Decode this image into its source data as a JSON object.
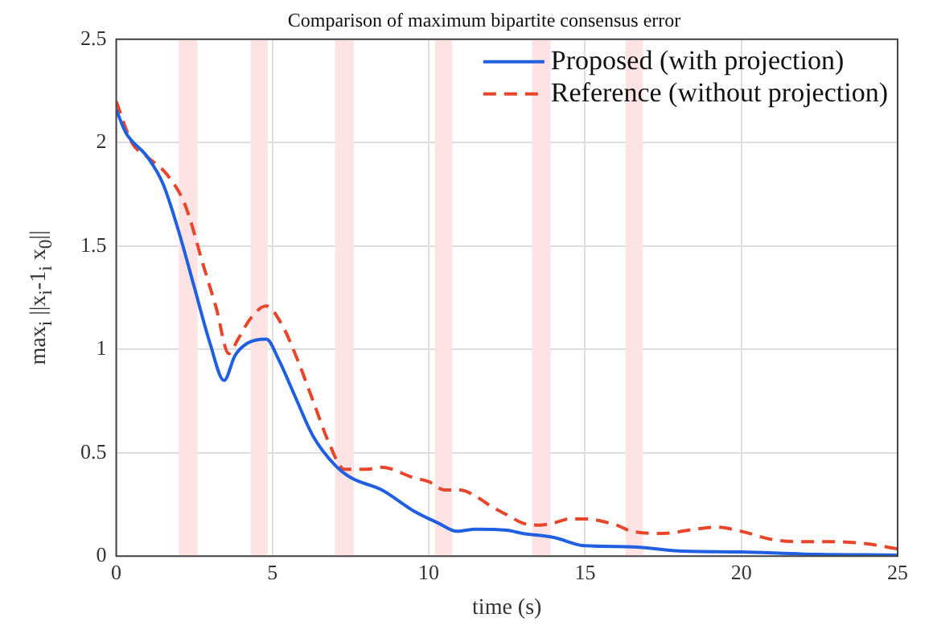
{
  "chart_data": {
    "type": "line",
    "title": "Comparison of maximum bipartite consensus error",
    "xlabel": "time (s)",
    "ylabel": "max$_{i}$ ||x$_{i}$-1$_{i}$ x$_{0}$||",
    "xlim": [
      0,
      25
    ],
    "xticks": [
      0,
      5,
      10,
      15,
      20,
      25
    ],
    "ylim": [
      0,
      2.5
    ],
    "yticks": [
      0,
      0.5,
      1,
      1.5,
      2,
      2.5
    ],
    "grid": true,
    "legend": "top right",
    "series": [
      {
        "name": "Proposed (with projection)",
        "color": "#1f5fe0",
        "line_style": "solid",
        "x": [
          0,
          0.3,
          1,
          1.5,
          2,
          2.5,
          3,
          3.45,
          3.8,
          4.2,
          4.8,
          5.2,
          5.7,
          6.3,
          7,
          7.5,
          8.5,
          9.5,
          10.3,
          10.9,
          11.5,
          12.5,
          13,
          14,
          15,
          16.5,
          18,
          20,
          22,
          25
        ],
        "values": [
          2.16,
          2.05,
          1.93,
          1.8,
          1.57,
          1.3,
          1.03,
          0.85,
          0.97,
          1.03,
          1.05,
          0.95,
          0.78,
          0.58,
          0.44,
          0.38,
          0.32,
          0.22,
          0.16,
          0.12,
          0.13,
          0.125,
          0.11,
          0.09,
          0.05,
          0.045,
          0.025,
          0.02,
          0.01,
          0.005
        ]
      },
      {
        "name": "Reference (without projection)",
        "color": "#e8452a",
        "line_style": "dashed",
        "x": [
          0,
          0.5,
          1,
          1.6,
          2.2,
          2.8,
          3.2,
          3.6,
          3.9,
          4.3,
          4.8,
          5.3,
          5.8,
          6.3,
          6.8,
          7.3,
          8,
          8.5,
          9.5,
          10,
          10.5,
          11,
          11.5,
          12,
          12.5,
          13,
          13.5,
          14,
          14.5,
          15,
          16,
          16.5,
          17.5,
          18.5,
          19.2,
          20,
          21,
          22,
          23,
          24,
          25
        ],
        "values": [
          2.2,
          2.0,
          1.93,
          1.85,
          1.7,
          1.4,
          1.2,
          0.98,
          1.05,
          1.15,
          1.21,
          1.12,
          0.95,
          0.75,
          0.55,
          0.42,
          0.42,
          0.43,
          0.38,
          0.36,
          0.32,
          0.32,
          0.29,
          0.24,
          0.2,
          0.16,
          0.15,
          0.16,
          0.18,
          0.18,
          0.15,
          0.12,
          0.11,
          0.13,
          0.14,
          0.12,
          0.08,
          0.07,
          0.07,
          0.06,
          0.035
        ]
      }
    ],
    "bands": [
      {
        "axis": "x",
        "from": 2.0,
        "to": 2.6,
        "color": "#fde3e3"
      },
      {
        "axis": "x",
        "from": 4.3,
        "to": 4.85,
        "color": "#fde3e3"
      },
      {
        "axis": "x",
        "from": 7.0,
        "to": 7.6,
        "color": "#fde3e3"
      },
      {
        "axis": "x",
        "from": 10.2,
        "to": 10.75,
        "color": "#fde3e3"
      },
      {
        "axis": "x",
        "from": 13.3,
        "to": 13.9,
        "color": "#fde3e3"
      },
      {
        "axis": "x",
        "from": 16.3,
        "to": 16.85,
        "color": "#fde3e3"
      }
    ]
  }
}
